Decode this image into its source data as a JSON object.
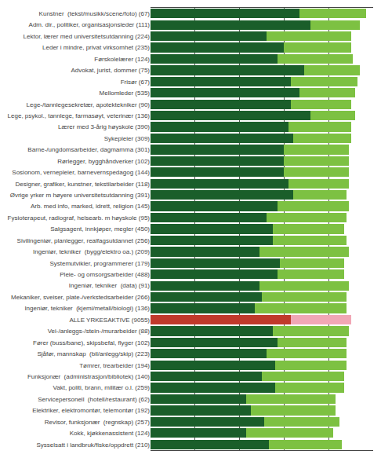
{
  "chart_data": {
    "type": "bar",
    "orientation": "horizontal",
    "stacked": true,
    "categories": [
      "Kunstner  (tekst/musikk/scene/foto) (67)",
      "Adm. dir., politiker, organisasjonsleder (111)",
      "Lektor, lærer med universitetsutdanning (224)",
      "Leder i mindre, privat virksomhet (235)",
      "Førskolelærer (124)",
      "Advokat, jurist, dommer (75)",
      "Frisør (67)",
      "Mellomleder (535)",
      "Lege-/tannlegesekretær, apotektekniker (90)",
      "Lege, psykol., tannlege, farmasøyt, veterinær (136)",
      "Lærer med 3-årig høyskole (390)",
      "Sykepleier (309)",
      "Barne-/ungdomsarbeider, dagmamma (301)",
      "Rørlegger, bygghåndverker (102)",
      "Sosionom, vernepleier, barnevernspedagog (144)",
      "Designer, grafiker, kunstner, tekstilarbeider (118)",
      "Øvrige yrker m høyere universitetsutdanning (391)",
      "Arb. med info, marked, idrett, religion (145)",
      "Fysioterapeut, radiograf, helsearb. m høyskole (95)",
      "Salgsagent, innkjøper, megler (450)",
      "Sivilingeniør, planlegger, realfagsutdannet (256)",
      "Ingeniør, tekniker  (bygg/elektro oa.) (209)",
      "Systemutvikler, programmerer (179)",
      "Pleie- og omsorgsarbeider (488)",
      "Ingeniør, tekniker  (data) (91)",
      "Mekaniker, sveiser, plate-/verkstedsarbeider (266)",
      "Ingeniør, tekniker  (kjemi/metall/biologi) (136)",
      "ALLE YRKESAKTIVE (9055)",
      "Vei-/anleggs-/stein-/murarbeider (88)",
      "Fører (buss/bane), skipsbefal, flyger (102)",
      "Sjåfør, mannskap  (bil/anlegg/skip) (223)",
      "Tømrer, trearbeider (194)",
      "Funksjonær  (administrasjon/bibliotek) (140)",
      "Vakt, politi, brann, militær o.l. (259)",
      "Servicepersonell  (hotell/restaurant) (62)",
      "Elektriker, elektromontør, telemontør (192)",
      "Revisor, funksjonær  (regnskap) (257)",
      "Kokk, kjøkkenassistent (124)",
      "Sysselsatt i landbruk/fiske/oppdrett (210)"
    ],
    "series": [
      {
        "values": [
          67,
          72,
          52,
          60,
          57,
          69,
          63,
          67,
          63,
          72,
          62,
          64,
          60,
          60,
          60,
          62,
          64,
          57,
          52,
          55,
          55,
          49,
          58,
          57,
          49,
          50,
          47,
          63,
          55,
          57,
          52,
          56,
          50,
          56,
          43,
          45,
          51,
          43,
          53
        ],
        "colors": [
          "#1a5e2a",
          "#1a5e2a",
          "#1a5e2a",
          "#1a5e2a",
          "#1a5e2a",
          "#1a5e2a",
          "#1a5e2a",
          "#1a5e2a",
          "#1a5e2a",
          "#1a5e2a",
          "#1a5e2a",
          "#1a5e2a",
          "#1a5e2a",
          "#1a5e2a",
          "#1a5e2a",
          "#1a5e2a",
          "#1a5e2a",
          "#1a5e2a",
          "#1a5e2a",
          "#1a5e2a",
          "#1a5e2a",
          "#1a5e2a",
          "#1a5e2a",
          "#1a5e2a",
          "#1a5e2a",
          "#1a5e2a",
          "#1a5e2a",
          "#c0392b",
          "#1a5e2a",
          "#1a5e2a",
          "#1a5e2a",
          "#1a5e2a",
          "#1a5e2a",
          "#1a5e2a",
          "#1a5e2a",
          "#1a5e2a",
          "#1a5e2a",
          "#1a5e2a",
          "#1a5e2a"
        ]
      },
      {
        "values": [
          30,
          22,
          38,
          30,
          34,
          25,
          30,
          25,
          27,
          20,
          28,
          26,
          29,
          29,
          29,
          27,
          24,
          32,
          36,
          32,
          33,
          40,
          29,
          30,
          40,
          38,
          41,
          27,
          34,
          31,
          36,
          32,
          37,
          31,
          40,
          38,
          34,
          39,
          33
        ],
        "colors": [
          "#7dc142",
          "#7dc142",
          "#7dc142",
          "#7dc142",
          "#7dc142",
          "#7dc142",
          "#7dc142",
          "#7dc142",
          "#7dc142",
          "#7dc142",
          "#7dc142",
          "#7dc142",
          "#7dc142",
          "#7dc142",
          "#7dc142",
          "#7dc142",
          "#7dc142",
          "#7dc142",
          "#7dc142",
          "#7dc142",
          "#7dc142",
          "#7dc142",
          "#7dc142",
          "#7dc142",
          "#7dc142",
          "#7dc142",
          "#7dc142",
          "#f1a7b5",
          "#7dc142",
          "#7dc142",
          "#7dc142",
          "#7dc142",
          "#7dc142",
          "#7dc142",
          "#7dc142",
          "#7dc142",
          "#7dc142",
          "#7dc142",
          "#7dc142"
        ]
      }
    ],
    "xlim": [
      0,
      100
    ],
    "xticks": [
      0,
      20,
      40,
      60,
      80,
      100
    ],
    "grid": true,
    "tick_labels": "y"
  }
}
